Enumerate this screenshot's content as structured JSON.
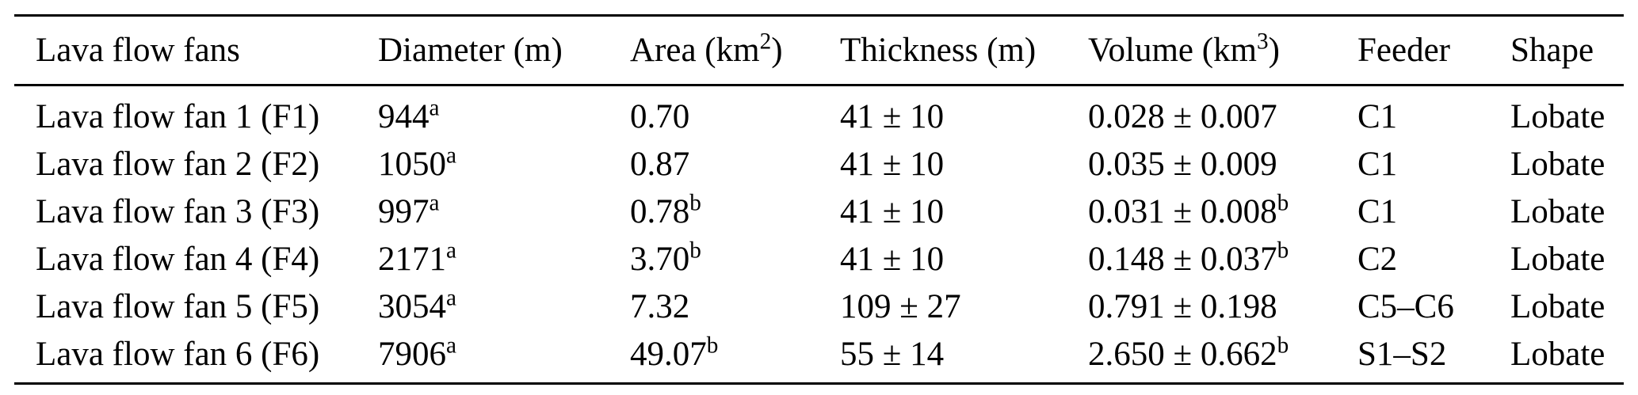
{
  "page": {
    "background_color": "#ffffff",
    "text_color": "#000000",
    "rule_color": "#000000"
  },
  "table": {
    "headers": [
      {
        "text": "Lava flow fans",
        "sup": "",
        "post": ""
      },
      {
        "text": "Diameter (m)",
        "sup": "",
        "post": ""
      },
      {
        "text": "Area (km",
        "sup": "2",
        "post": ")"
      },
      {
        "text": "Thickness (m)",
        "sup": "",
        "post": ""
      },
      {
        "text": "Volume (km",
        "sup": "3",
        "post": ")"
      },
      {
        "text": "Feeder",
        "sup": "",
        "post": ""
      },
      {
        "text": "Shape",
        "sup": "",
        "post": ""
      }
    ],
    "rows": [
      {
        "cells": [
          {
            "text": "Lava flow fan 1 (F1)",
            "sup": ""
          },
          {
            "text": "944",
            "sup": "a"
          },
          {
            "text": "0.70",
            "sup": ""
          },
          {
            "text": "41 ± 10",
            "sup": ""
          },
          {
            "text": "0.028 ± 0.007",
            "sup": ""
          },
          {
            "text": "C1",
            "sup": ""
          },
          {
            "text": "Lobate",
            "sup": ""
          }
        ]
      },
      {
        "cells": [
          {
            "text": "Lava flow fan 2 (F2)",
            "sup": ""
          },
          {
            "text": "1050",
            "sup": "a"
          },
          {
            "text": "0.87",
            "sup": ""
          },
          {
            "text": "41 ± 10",
            "sup": ""
          },
          {
            "text": "0.035 ± 0.009",
            "sup": ""
          },
          {
            "text": "C1",
            "sup": ""
          },
          {
            "text": "Lobate",
            "sup": ""
          }
        ]
      },
      {
        "cells": [
          {
            "text": "Lava flow fan 3 (F3)",
            "sup": ""
          },
          {
            "text": "997",
            "sup": "a"
          },
          {
            "text": "0.78",
            "sup": "b"
          },
          {
            "text": "41 ± 10",
            "sup": ""
          },
          {
            "text": "0.031 ± 0.008",
            "sup": "b"
          },
          {
            "text": "C1",
            "sup": ""
          },
          {
            "text": "Lobate",
            "sup": ""
          }
        ]
      },
      {
        "cells": [
          {
            "text": "Lava flow fan 4 (F4)",
            "sup": ""
          },
          {
            "text": "2171",
            "sup": "a"
          },
          {
            "text": "3.70",
            "sup": "b"
          },
          {
            "text": "41 ± 10",
            "sup": ""
          },
          {
            "text": "0.148 ± 0.037",
            "sup": "b"
          },
          {
            "text": "C2",
            "sup": ""
          },
          {
            "text": "Lobate",
            "sup": ""
          }
        ]
      },
      {
        "cells": [
          {
            "text": "Lava flow fan 5 (F5)",
            "sup": ""
          },
          {
            "text": "3054",
            "sup": "a"
          },
          {
            "text": "7.32",
            "sup": ""
          },
          {
            "text": "109 ± 27",
            "sup": ""
          },
          {
            "text": "0.791 ± 0.198",
            "sup": ""
          },
          {
            "text": "C5–C6",
            "sup": ""
          },
          {
            "text": "Lobate",
            "sup": ""
          }
        ]
      },
      {
        "cells": [
          {
            "text": "Lava flow fan 6 (F6)",
            "sup": ""
          },
          {
            "text": "7906",
            "sup": "a"
          },
          {
            "text": "49.07",
            "sup": "b"
          },
          {
            "text": "55 ± 14",
            "sup": ""
          },
          {
            "text": "2.650 ± 0.662",
            "sup": "b"
          },
          {
            "text": "S1–S2",
            "sup": ""
          },
          {
            "text": "Lobate",
            "sup": ""
          }
        ]
      }
    ]
  }
}
